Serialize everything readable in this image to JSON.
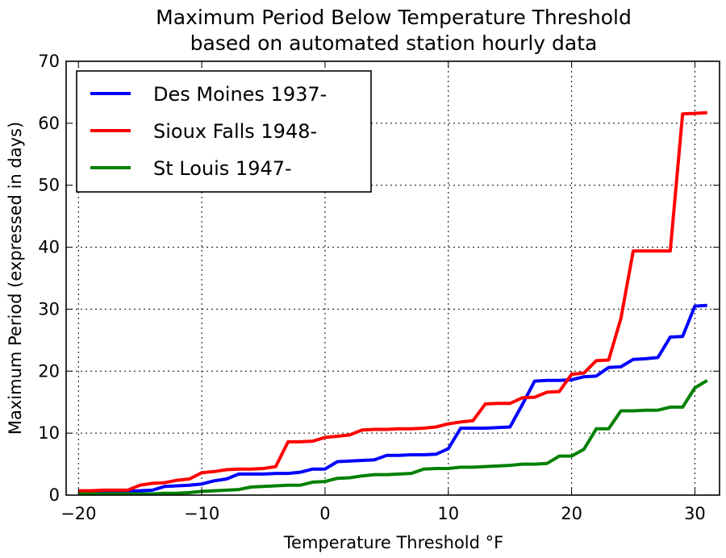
{
  "chart_data": {
    "type": "line",
    "title": "Maximum Period Below Temperature Threshold",
    "subtitle": "based on automated station hourly data",
    "xlabel": "Temperature Threshold °F",
    "ylabel": "Maximum Period (expressed in days)",
    "xlim": [
      -21,
      32
    ],
    "ylim": [
      0,
      70
    ],
    "xticks": [
      -20,
      -10,
      0,
      10,
      20,
      30
    ],
    "xtick_labels": [
      "−20",
      "−10",
      "0",
      "10",
      "20",
      "30"
    ],
    "yticks": [
      0,
      10,
      20,
      30,
      40,
      50,
      60,
      70
    ],
    "ytick_labels": [
      "0",
      "10",
      "20",
      "30",
      "40",
      "50",
      "60",
      "70"
    ],
    "grid": true,
    "legend_position": "top-left",
    "x": [
      -20,
      -19,
      -18,
      -17,
      -16,
      -15,
      -14,
      -13,
      -12,
      -11,
      -10,
      -9,
      -8,
      -7,
      -6,
      -5,
      -4,
      -3,
      -2,
      -1,
      0,
      1,
      2,
      3,
      4,
      5,
      6,
      7,
      8,
      9,
      10,
      11,
      12,
      13,
      14,
      15,
      16,
      17,
      18,
      19,
      20,
      21,
      22,
      23,
      24,
      25,
      26,
      27,
      28,
      29,
      30,
      31
    ],
    "series": [
      {
        "name": "Des Moines 1937-",
        "color": "#0000ff",
        "values": [
          0.5,
          0.5,
          0.6,
          0.6,
          0.6,
          0.7,
          0.8,
          1.4,
          1.5,
          1.6,
          1.8,
          2.3,
          2.6,
          3.4,
          3.4,
          3.4,
          3.5,
          3.5,
          3.7,
          4.2,
          4.2,
          5.4,
          5.5,
          5.6,
          5.7,
          6.4,
          6.4,
          6.5,
          6.5,
          6.6,
          7.5,
          10.8,
          10.8,
          10.8,
          10.9,
          11.0,
          14.6,
          18.4,
          18.5,
          18.5,
          18.6,
          19.1,
          19.2,
          20.6,
          20.7,
          21.9,
          22.0,
          22.2,
          25.5,
          25.6,
          30.5,
          30.6
        ]
      },
      {
        "name": "Sioux Falls 1948-",
        "color": "#ff0000",
        "values": [
          0.7,
          0.7,
          0.8,
          0.8,
          0.8,
          1.6,
          1.9,
          2.0,
          2.4,
          2.6,
          3.6,
          3.8,
          4.1,
          4.2,
          4.2,
          4.3,
          4.6,
          8.6,
          8.6,
          8.7,
          9.3,
          9.5,
          9.7,
          10.5,
          10.6,
          10.6,
          10.7,
          10.7,
          10.8,
          11.0,
          11.5,
          11.8,
          12.0,
          14.7,
          14.8,
          14.8,
          15.7,
          15.8,
          16.6,
          16.7,
          19.5,
          19.7,
          21.7,
          21.8,
          28.5,
          39.4,
          39.4,
          39.4,
          39.4,
          61.5,
          61.6,
          61.7
        ]
      },
      {
        "name": "St Louis 1947-",
        "color": "#008000",
        "values": [
          0.2,
          0.2,
          0.2,
          0.2,
          0.2,
          0.2,
          0.2,
          0.3,
          0.3,
          0.4,
          0.6,
          0.7,
          0.8,
          0.9,
          1.3,
          1.4,
          1.5,
          1.6,
          1.6,
          2.1,
          2.2,
          2.7,
          2.8,
          3.1,
          3.3,
          3.3,
          3.4,
          3.5,
          4.2,
          4.3,
          4.3,
          4.5,
          4.5,
          4.6,
          4.7,
          4.8,
          5.0,
          5.0,
          5.1,
          6.3,
          6.3,
          7.4,
          10.7,
          10.7,
          13.6,
          13.6,
          13.7,
          13.7,
          14.2,
          14.2,
          17.3,
          18.5
        ]
      }
    ]
  }
}
